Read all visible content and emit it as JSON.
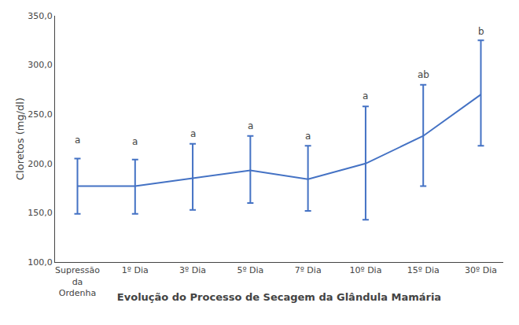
{
  "chart_data": {
    "type": "line",
    "xlabel": "Evolução do Processo de Secagem da Glândula Mamária",
    "ylabel": "Cloretos (mg/dl)",
    "categories": [
      "Supressão\nda\nOrdenha",
      "1º Dia",
      "3º Dia",
      "5º Dia",
      "7º Dia",
      "10º Dia",
      "15º Dia",
      "30º Dia"
    ],
    "values": [
      177,
      177,
      185,
      193,
      184,
      200,
      228,
      270
    ],
    "upper": [
      205,
      204,
      220,
      228,
      218,
      258,
      280,
      325
    ],
    "lower": [
      149,
      149,
      153,
      160,
      152,
      143,
      177,
      218
    ],
    "labels": [
      "a",
      "a",
      "a",
      "a",
      "a",
      "a",
      "ab",
      "b"
    ],
    "label_y": [
      217,
      215,
      223,
      231,
      221,
      261,
      283,
      327
    ],
    "color": "#4472C4",
    "ylim": [
      100,
      350
    ],
    "yticks": [
      {
        "value": 100.0,
        "label": "100,0"
      },
      {
        "value": 150.0,
        "label": "150,0"
      },
      {
        "value": 200.0,
        "label": "200,0"
      },
      {
        "value": 250.0,
        "label": "250,0"
      },
      {
        "value": 300.0,
        "label": "300,0"
      },
      {
        "value": 350.0,
        "label": "350,0"
      }
    ],
    "grid": false
  }
}
